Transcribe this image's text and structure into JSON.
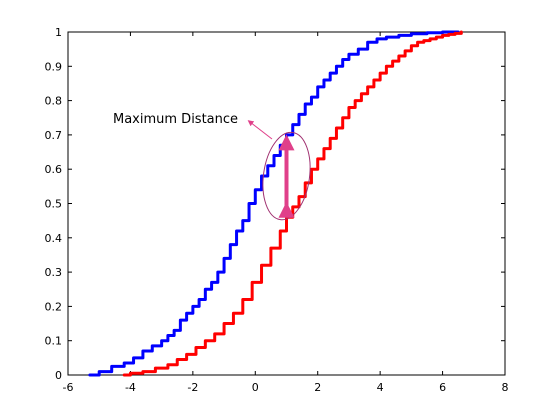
{
  "chart_data": {
    "type": "line",
    "title": "",
    "xlabel": "",
    "ylabel": "",
    "xlim": [
      -6,
      8
    ],
    "ylim": [
      0,
      1
    ],
    "xticks": [
      -6,
      -4,
      -2,
      0,
      2,
      4,
      6,
      8
    ],
    "yticks": [
      0,
      0.1,
      0.2,
      0.3,
      0.4,
      0.5,
      0.6,
      0.7,
      0.8,
      0.9,
      1
    ],
    "grid": false,
    "legend": "none",
    "series": [
      {
        "color": "#0000ff",
        "x": [
          -5.3,
          -5.0,
          -4.6,
          -4.2,
          -3.9,
          -3.6,
          -3.3,
          -3.0,
          -2.8,
          -2.6,
          -2.4,
          -2.2,
          -2.0,
          -1.8,
          -1.6,
          -1.4,
          -1.2,
          -1.0,
          -0.8,
          -0.6,
          -0.4,
          -0.2,
          0.0,
          0.2,
          0.4,
          0.6,
          0.8,
          1.0,
          1.2,
          1.4,
          1.6,
          1.8,
          2.0,
          2.2,
          2.4,
          2.6,
          2.8,
          3.0,
          3.3,
          3.6,
          3.9,
          4.2,
          4.6,
          5.0,
          5.5,
          6.0,
          6.5
        ],
        "y": [
          0.0,
          0.01,
          0.025,
          0.035,
          0.05,
          0.07,
          0.085,
          0.1,
          0.115,
          0.13,
          0.16,
          0.18,
          0.2,
          0.22,
          0.25,
          0.27,
          0.3,
          0.34,
          0.38,
          0.42,
          0.45,
          0.5,
          0.54,
          0.58,
          0.61,
          0.64,
          0.67,
          0.7,
          0.73,
          0.76,
          0.79,
          0.81,
          0.84,
          0.86,
          0.88,
          0.9,
          0.92,
          0.935,
          0.95,
          0.97,
          0.98,
          0.985,
          0.99,
          0.995,
          0.998,
          1.0,
          1.0
        ]
      },
      {
        "color": "#ff0000",
        "x": [
          -4.2,
          -4.0,
          -3.6,
          -3.2,
          -2.8,
          -2.5,
          -2.2,
          -1.9,
          -1.6,
          -1.3,
          -1.0,
          -0.7,
          -0.4,
          -0.1,
          0.2,
          0.5,
          0.8,
          1.0,
          1.2,
          1.4,
          1.6,
          1.8,
          2.0,
          2.2,
          2.4,
          2.6,
          2.8,
          3.0,
          3.2,
          3.4,
          3.6,
          3.8,
          4.0,
          4.2,
          4.4,
          4.6,
          4.8,
          5.0,
          5.2,
          5.4,
          5.6,
          5.8,
          6.0,
          6.2,
          6.4,
          6.6
        ],
        "y": [
          0.0,
          0.005,
          0.01,
          0.02,
          0.03,
          0.045,
          0.06,
          0.08,
          0.1,
          0.12,
          0.15,
          0.18,
          0.22,
          0.27,
          0.32,
          0.37,
          0.42,
          0.46,
          0.49,
          0.52,
          0.56,
          0.6,
          0.63,
          0.66,
          0.69,
          0.72,
          0.75,
          0.78,
          0.8,
          0.82,
          0.84,
          0.86,
          0.88,
          0.9,
          0.915,
          0.93,
          0.945,
          0.96,
          0.97,
          0.975,
          0.98,
          0.985,
          0.99,
          0.993,
          0.996,
          1.0
        ]
      }
    ],
    "annotations": [
      {
        "text": "Maximum Distance",
        "arrow_color": "#e0408a",
        "x": 1.0,
        "y_top": 0.69,
        "y_bottom": 0.47,
        "ellipse_color": "#a03070"
      }
    ]
  }
}
